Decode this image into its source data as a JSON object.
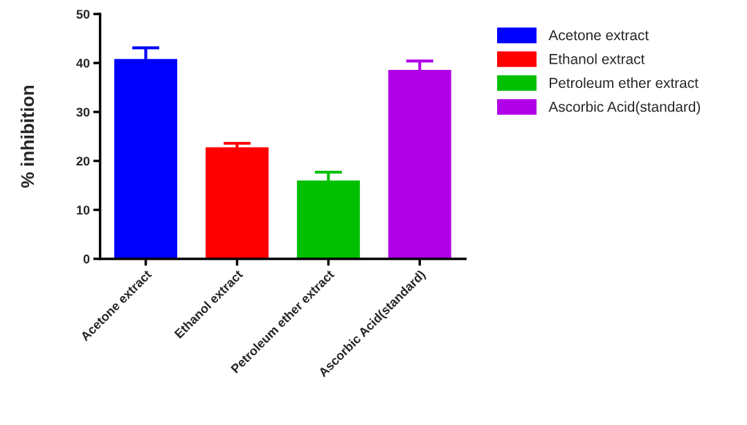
{
  "chart_data": {
    "type": "bar",
    "ylabel": "% inhibition",
    "categories": [
      "Acetone extract",
      "Ethanol extract",
      "Petroleum ether extract",
      "Ascorbic Acid(standard)"
    ],
    "series": [
      {
        "name": "Acetone extract",
        "color": "#0000ff",
        "values": [
          40.9,
          null,
          null,
          null
        ],
        "errors": [
          2.2,
          null,
          null,
          null
        ]
      },
      {
        "name": "Ethanol extract",
        "color": "#ff0000",
        "values": [
          null,
          22.9,
          null,
          null
        ],
        "errors": [
          null,
          0.7,
          null,
          null
        ]
      },
      {
        "name": "Petroleum ether extract",
        "color": "#00c000",
        "values": [
          null,
          null,
          16.1,
          null
        ],
        "errors": [
          null,
          null,
          1.6,
          null
        ]
      },
      {
        "name": "Ascorbic Acid(standard)",
        "color": "#b000e8",
        "values": [
          null,
          null,
          null,
          38.7
        ],
        "errors": [
          null,
          null,
          null,
          1.7
        ]
      }
    ],
    "ylim": [
      0,
      50
    ],
    "yticks": [
      0,
      10,
      20,
      30,
      40,
      50
    ],
    "grid": false,
    "legend": "top right"
  }
}
